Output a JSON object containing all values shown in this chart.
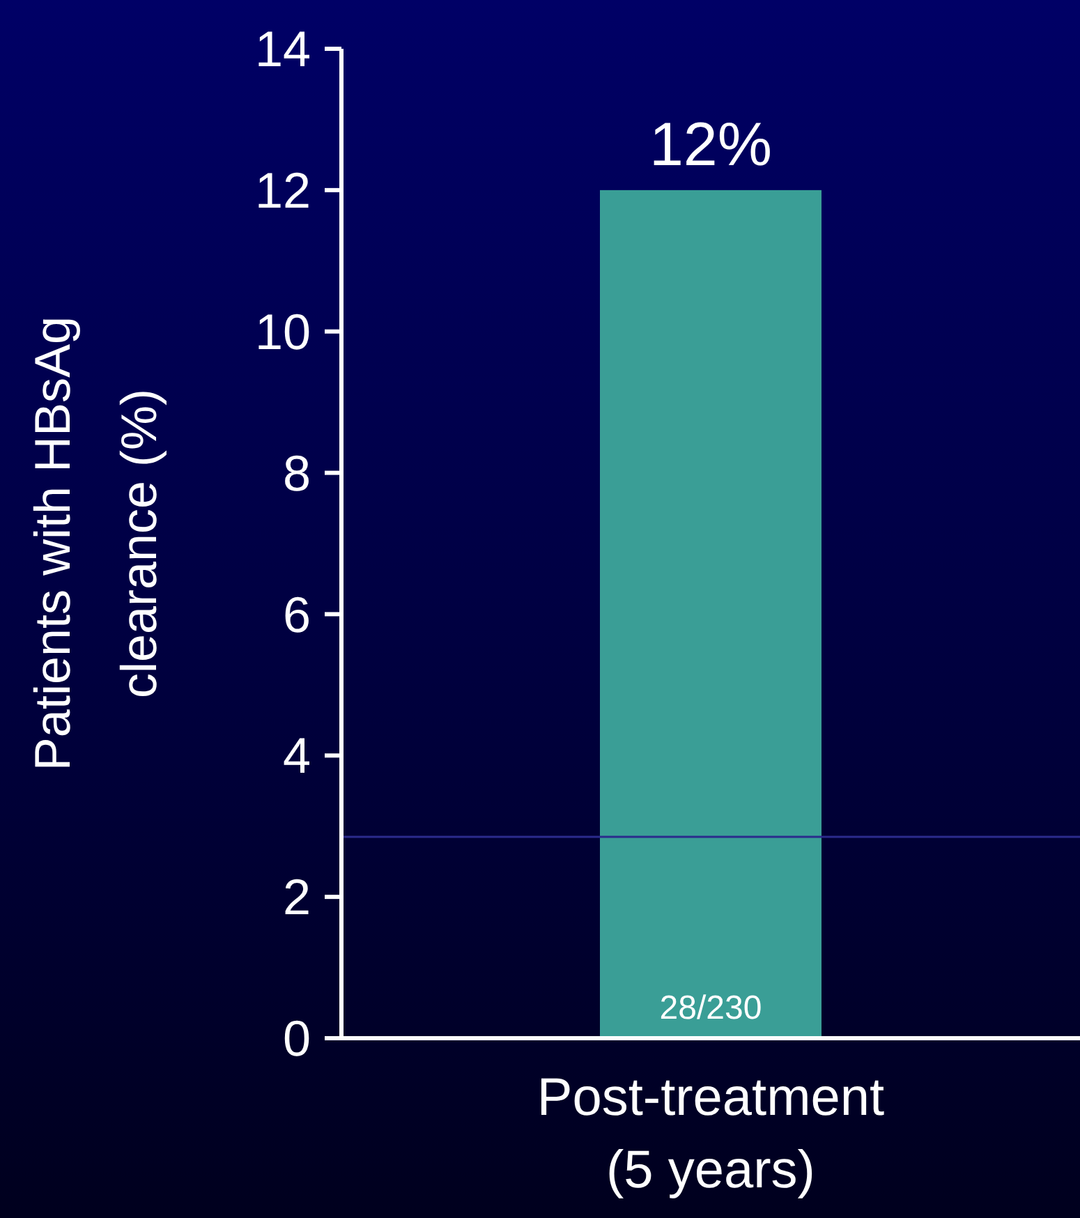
{
  "chart_data": {
    "type": "bar",
    "ylabel": "Patients with HBsAg\nclearance (%)",
    "categories": [
      "Post-treatment\n(5 years)"
    ],
    "values": [
      12
    ],
    "value_labels": [
      "12%"
    ],
    "color": "#3a9e96",
    "ylim": [
      0,
      14
    ],
    "yticks": [
      0,
      2,
      4,
      6,
      8,
      10,
      12,
      14
    ],
    "grid": false,
    "ref_lines": [
      {
        "axis": "y",
        "value": 2.85,
        "color": "#2b2b8c"
      }
    ],
    "annotations": [
      "28/230"
    ]
  }
}
